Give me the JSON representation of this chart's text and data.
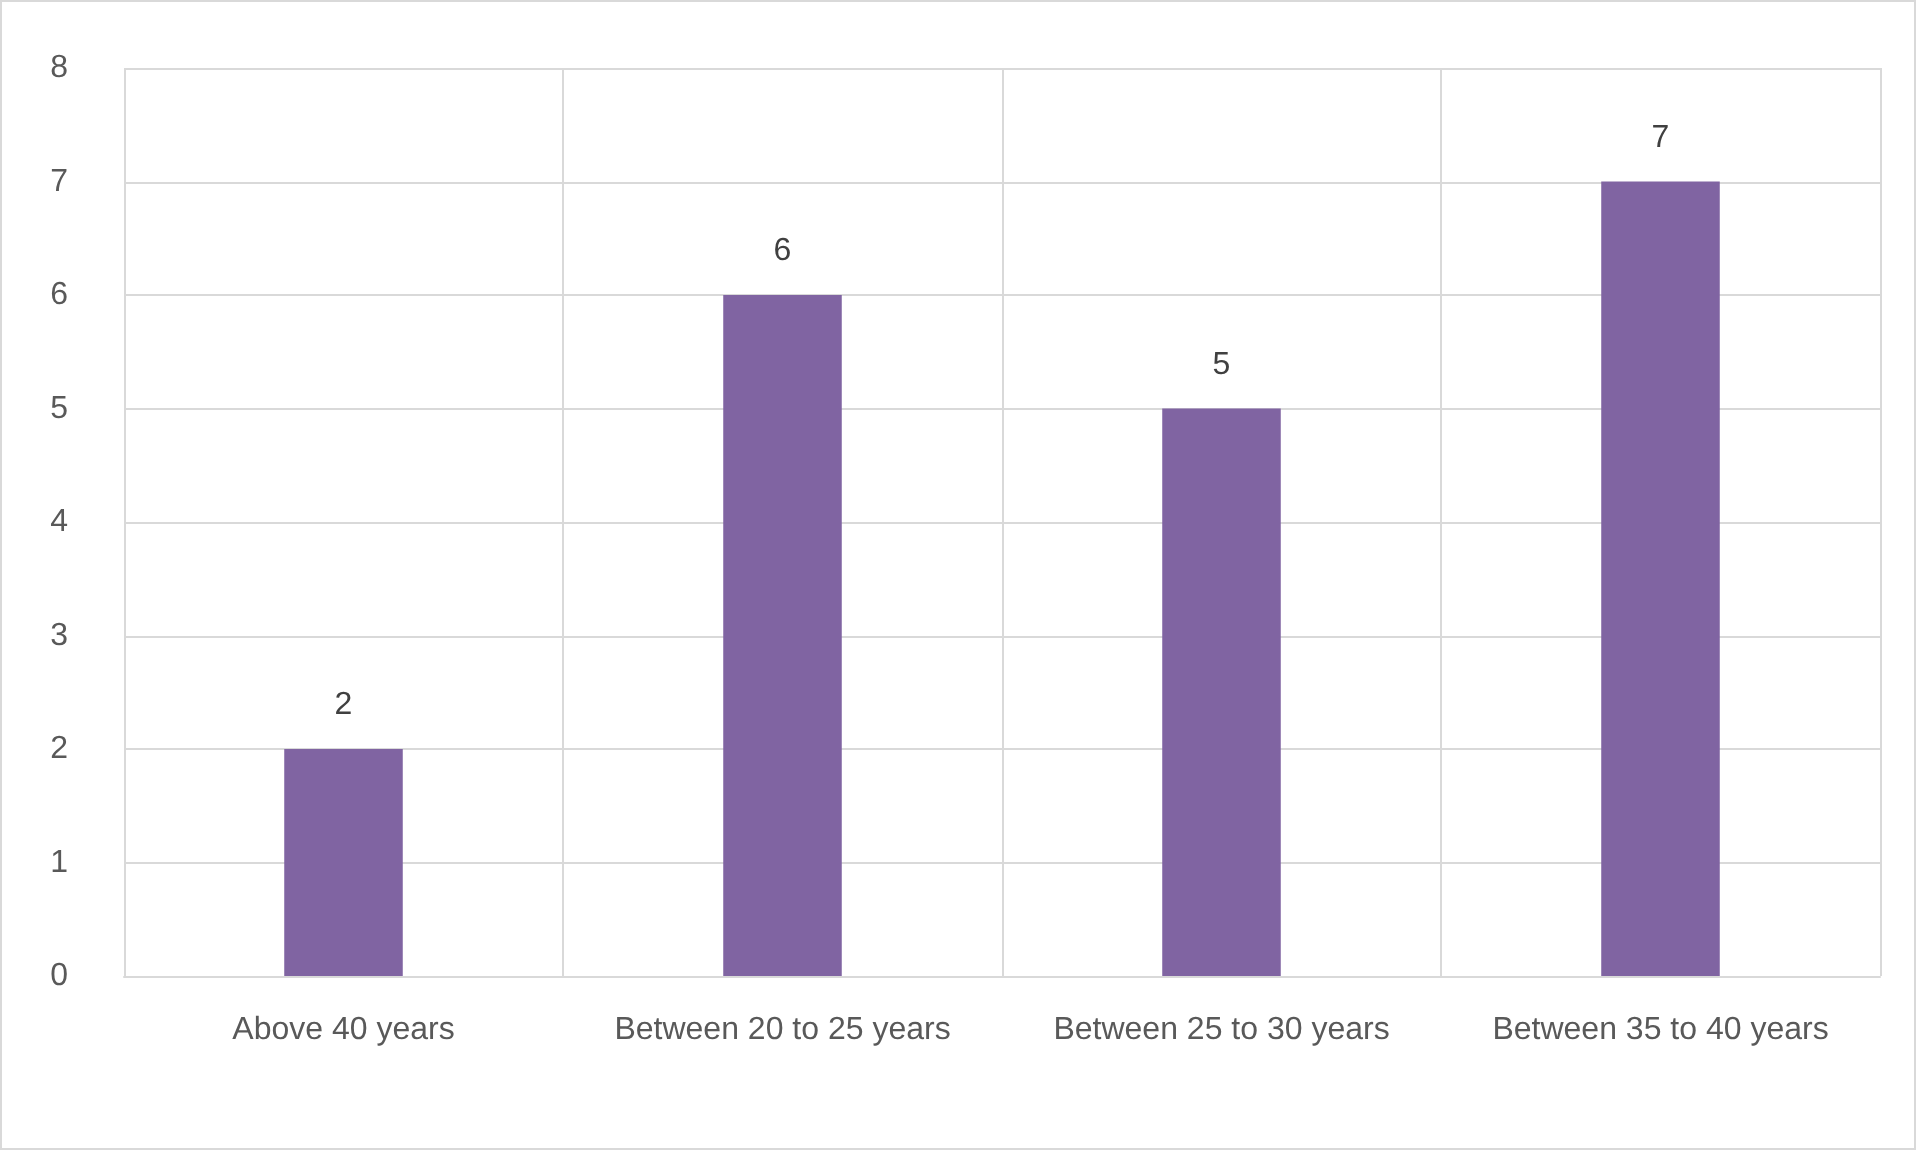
{
  "chart_data": {
    "type": "bar",
    "categories": [
      "Above 40 years",
      "Between 20 to 25 years",
      "Between 25 to 30 years",
      "Between 35 to 40 years"
    ],
    "values": [
      2,
      6,
      5,
      7
    ],
    "color": "#8064a2",
    "ylim": [
      0,
      8
    ],
    "yticks": [
      0,
      1,
      2,
      3,
      4,
      5,
      6,
      7,
      8
    ],
    "grid": true,
    "data_labels": true
  }
}
